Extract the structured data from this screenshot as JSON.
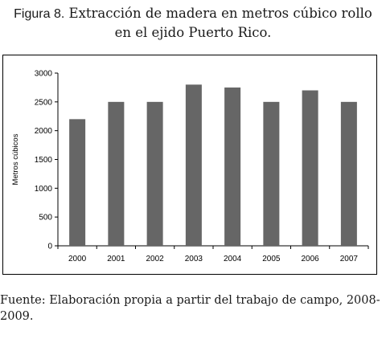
{
  "caption": {
    "label": "Figura 8.",
    "title_line1": "Extracción de madera en metros cúbico rollo",
    "title_line2": "en el ejido Puerto Rico."
  },
  "chart_data": {
    "type": "bar",
    "categories": [
      "2000",
      "2001",
      "2002",
      "2003",
      "2004",
      "2005",
      "2006",
      "2007"
    ],
    "values": [
      2200,
      2500,
      2500,
      2800,
      2750,
      2500,
      2700,
      2500
    ],
    "ylabel": "Metros cúbicos",
    "xlabel": "",
    "ylim": [
      0,
      3000
    ],
    "yticks": [
      0,
      500,
      1000,
      1500,
      2000,
      2500,
      3000
    ],
    "grid": false,
    "legend": "none",
    "bar_color": "#666666"
  },
  "source": {
    "text": "Fuente: Elaboración propia a partir del trabajo de campo, 2008-2009."
  }
}
